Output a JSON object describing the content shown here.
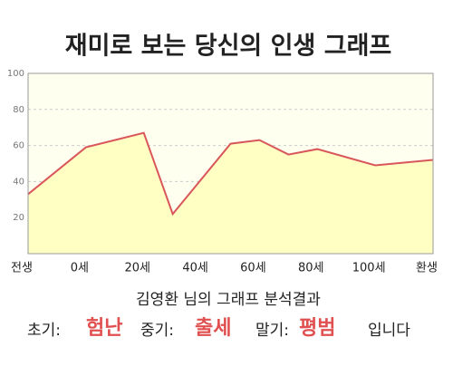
{
  "chart_data": {
    "type": "area-line",
    "title": "재미로 보는 당신의 인생 그래프",
    "x": [
      -20,
      0,
      20,
      30,
      50,
      60,
      70,
      80,
      100,
      120
    ],
    "values": [
      33,
      59,
      67,
      22,
      61,
      63,
      55,
      58,
      49,
      52
    ],
    "color": "#d9575a",
    "fill": "#ffffc4",
    "background": "#fffff0",
    "xlim": [
      -20,
      120
    ],
    "xticks": [
      {
        "value": -20,
        "label": "전생"
      },
      {
        "value": 0,
        "label": "0세"
      },
      {
        "value": 20,
        "label": "20세"
      },
      {
        "value": 40,
        "label": "40세"
      },
      {
        "value": 60,
        "label": "60세"
      },
      {
        "value": 80,
        "label": "80세"
      },
      {
        "value": 100,
        "label": "100세"
      },
      {
        "value": 120,
        "label": "환생"
      }
    ],
    "ylim": [
      0,
      100
    ],
    "yticks": [
      20,
      40,
      60,
      80,
      100
    ],
    "grid": true
  },
  "summary": {
    "heading": "김영환 님의 그래프 분석결과",
    "items": [
      {
        "label": "초기:",
        "value": "험난"
      },
      {
        "label": "중기:",
        "value": "출세"
      },
      {
        "label": "말기:",
        "value": "평범"
      }
    ],
    "suffix": "입니다"
  }
}
